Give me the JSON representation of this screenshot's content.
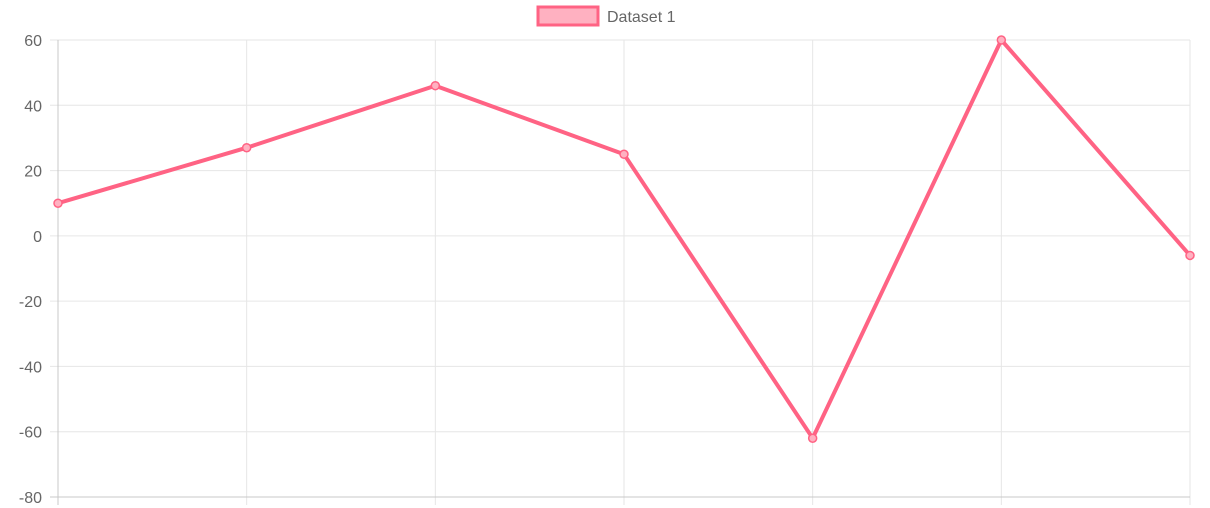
{
  "chart_data": {
    "type": "line",
    "categories": [
      "",
      "",
      "",
      "",
      "",
      "",
      ""
    ],
    "series": [
      {
        "name": "Dataset 1",
        "values": [
          10,
          27,
          46,
          25,
          -62,
          60,
          -6
        ],
        "color": "#ff6384",
        "fill_color": "#ffb1c1"
      }
    ],
    "ylim": [
      -80,
      60
    ],
    "yticks": [
      60,
      40,
      20,
      0,
      -20,
      -40,
      -60,
      -80
    ],
    "grid": true,
    "legend_position": "top-center",
    "title": "",
    "xlabel": "",
    "ylabel": ""
  }
}
